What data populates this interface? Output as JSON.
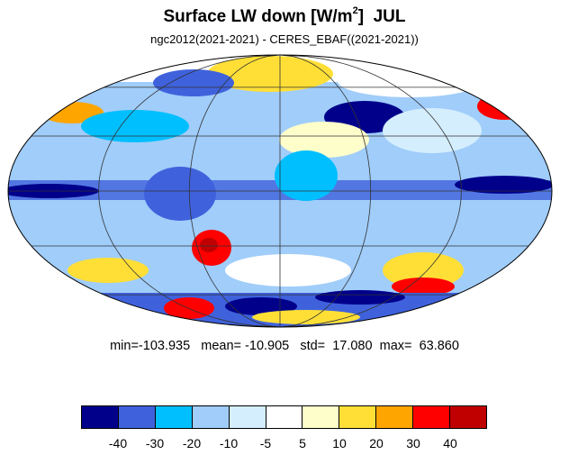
{
  "title": {
    "main": "Surface LW down [W/m",
    "sup": "2",
    "close": "]",
    "month": "JUL"
  },
  "subtitle": "ngc2012(2021-2021) - CERES_EBAF((2021-2021))",
  "stats": {
    "min_label": "min=",
    "min": "-103.935",
    "mean_label": "mean=",
    "mean": "-10.905",
    "std_label": "std=",
    "std": "17.080",
    "max_label": "max=",
    "max": "63.860"
  },
  "colorbar": {
    "colors": [
      "#00008b",
      "#3f62dc",
      "#00bfff",
      "#a0cdfa",
      "#d4eefe",
      "#ffffff",
      "#fefecb",
      "#ffdf36",
      "#ffa500",
      "#ff0000",
      "#c00000"
    ],
    "labels": [
      "-40",
      "-30",
      "-20",
      "-10",
      "-5",
      "5",
      "10",
      "20",
      "30",
      "40"
    ]
  },
  "map": {
    "projection": "mollweide",
    "grid": true
  }
}
